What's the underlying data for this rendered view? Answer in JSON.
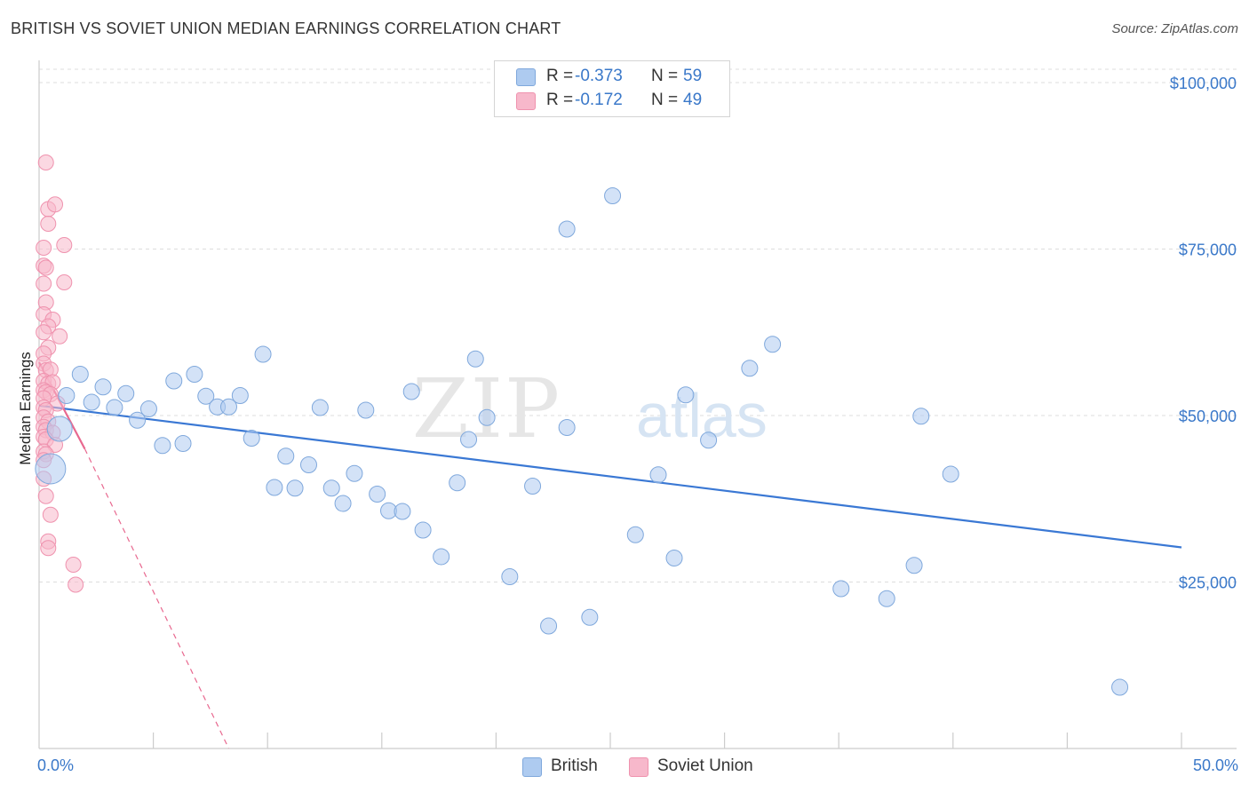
{
  "title": "BRITISH VS SOVIET UNION MEDIAN EARNINGS CORRELATION CHART",
  "source": "Source: ZipAtlas.com",
  "watermark": {
    "zip": "ZIP",
    "atlas": "atlas"
  },
  "legend_top": [
    {
      "r_label": "R =",
      "r_value": "-0.373",
      "n_label": "N =",
      "n_value": "59"
    },
    {
      "r_label": "R =",
      "r_value": "-0.172",
      "n_label": "N =",
      "n_value": "49"
    }
  ],
  "legend_bottom": [
    {
      "label": "British"
    },
    {
      "label": "Soviet Union"
    }
  ],
  "colors": {
    "british_fill": "#aecbf0",
    "british_stroke": "#7fa8dc",
    "british_line": "#3a78d4",
    "soviet_fill": "#f7b8cb",
    "soviet_stroke": "#ef92ae",
    "soviet_line": "#e8688f",
    "accent": "#3a78c9",
    "grid": "#dddddd"
  },
  "chart_data": {
    "type": "scatter",
    "title": "BRITISH VS SOVIET UNION MEDIAN EARNINGS CORRELATION CHART",
    "xlabel": "",
    "ylabel": "Median Earnings",
    "xlim": [
      0,
      50
    ],
    "ylim": [
      0,
      102000
    ],
    "x_tick_labels": [
      "0.0%",
      "50.0%"
    ],
    "y_ticks": [
      25000,
      50000,
      75000,
      100000
    ],
    "y_tick_labels": [
      "$25,000",
      "$50,000",
      "$75,000",
      "$100,000"
    ],
    "grid": true,
    "series": [
      {
        "name": "British",
        "r": -0.373,
        "n": 59,
        "trend": {
          "x": [
            0,
            50
          ],
          "y": [
            51500,
            30200
          ]
        },
        "points": [
          {
            "x": 0.5,
            "y": 42000,
            "big": 2
          },
          {
            "x": 0.9,
            "y": 48000,
            "big": 1
          },
          {
            "x": 1.2,
            "y": 53000
          },
          {
            "x": 1.8,
            "y": 56200
          },
          {
            "x": 2.3,
            "y": 52000
          },
          {
            "x": 2.8,
            "y": 54300
          },
          {
            "x": 3.3,
            "y": 51200
          },
          {
            "x": 3.8,
            "y": 53300
          },
          {
            "x": 4.3,
            "y": 49300
          },
          {
            "x": 4.8,
            "y": 51000
          },
          {
            "x": 5.4,
            "y": 45500
          },
          {
            "x": 5.9,
            "y": 55200
          },
          {
            "x": 6.3,
            "y": 45800
          },
          {
            "x": 6.8,
            "y": 56200
          },
          {
            "x": 7.3,
            "y": 52900
          },
          {
            "x": 7.8,
            "y": 51300
          },
          {
            "x": 8.3,
            "y": 51300
          },
          {
            "x": 8.8,
            "y": 53000
          },
          {
            "x": 9.3,
            "y": 46600
          },
          {
            "x": 9.8,
            "y": 59200
          },
          {
            "x": 10.3,
            "y": 39200
          },
          {
            "x": 10.8,
            "y": 43900
          },
          {
            "x": 11.2,
            "y": 39100
          },
          {
            "x": 11.8,
            "y": 42600
          },
          {
            "x": 12.3,
            "y": 51200
          },
          {
            "x": 12.8,
            "y": 39100
          },
          {
            "x": 13.3,
            "y": 36800
          },
          {
            "x": 13.8,
            "y": 41300
          },
          {
            "x": 14.3,
            "y": 50800
          },
          {
            "x": 14.8,
            "y": 38200
          },
          {
            "x": 15.3,
            "y": 35700
          },
          {
            "x": 15.9,
            "y": 35600
          },
          {
            "x": 16.3,
            "y": 53600
          },
          {
            "x": 16.8,
            "y": 32800
          },
          {
            "x": 17.6,
            "y": 28800
          },
          {
            "x": 18.3,
            "y": 39900
          },
          {
            "x": 18.8,
            "y": 46400
          },
          {
            "x": 19.1,
            "y": 58500
          },
          {
            "x": 19.6,
            "y": 49700
          },
          {
            "x": 20.6,
            "y": 25800
          },
          {
            "x": 21.6,
            "y": 39400
          },
          {
            "x": 22.3,
            "y": 18400
          },
          {
            "x": 23.1,
            "y": 48200
          },
          {
            "x": 23.1,
            "y": 78000
          },
          {
            "x": 24.1,
            "y": 19700
          },
          {
            "x": 25.1,
            "y": 83000
          },
          {
            "x": 26.1,
            "y": 32100
          },
          {
            "x": 27.1,
            "y": 41100
          },
          {
            "x": 27.8,
            "y": 28600
          },
          {
            "x": 28.3,
            "y": 53100
          },
          {
            "x": 29.3,
            "y": 46300
          },
          {
            "x": 31.1,
            "y": 57100
          },
          {
            "x": 32.1,
            "y": 60700
          },
          {
            "x": 35.1,
            "y": 24000
          },
          {
            "x": 37.1,
            "y": 22500
          },
          {
            "x": 38.3,
            "y": 27500
          },
          {
            "x": 38.6,
            "y": 49900
          },
          {
            "x": 39.9,
            "y": 41200
          },
          {
            "x": 47.3,
            "y": 9200
          }
        ]
      },
      {
        "name": "Soviet Union",
        "r": -0.172,
        "n": 49,
        "trend": {
          "x": [
            0,
            2.0
          ],
          "y": [
            58000,
            45000
          ]
        },
        "trend_extension": {
          "x": [
            2.0,
            8.3
          ],
          "y": [
            45000,
            0
          ]
        },
        "points": [
          {
            "x": 0.3,
            "y": 88000
          },
          {
            "x": 0.4,
            "y": 81000
          },
          {
            "x": 0.7,
            "y": 81700
          },
          {
            "x": 0.4,
            "y": 78800
          },
          {
            "x": 1.1,
            "y": 75600
          },
          {
            "x": 0.2,
            "y": 75200
          },
          {
            "x": 0.2,
            "y": 72500
          },
          {
            "x": 0.3,
            "y": 72200
          },
          {
            "x": 1.1,
            "y": 70000
          },
          {
            "x": 0.2,
            "y": 69800
          },
          {
            "x": 0.3,
            "y": 67000
          },
          {
            "x": 0.2,
            "y": 65200
          },
          {
            "x": 0.6,
            "y": 64400
          },
          {
            "x": 0.4,
            "y": 63400
          },
          {
            "x": 0.2,
            "y": 62500
          },
          {
            "x": 0.9,
            "y": 61900
          },
          {
            "x": 0.4,
            "y": 60200
          },
          {
            "x": 0.2,
            "y": 59300
          },
          {
            "x": 0.2,
            "y": 57800
          },
          {
            "x": 0.3,
            "y": 56800
          },
          {
            "x": 0.5,
            "y": 56900
          },
          {
            "x": 0.2,
            "y": 55200
          },
          {
            "x": 0.4,
            "y": 54800
          },
          {
            "x": 0.6,
            "y": 55000
          },
          {
            "x": 0.2,
            "y": 53800
          },
          {
            "x": 0.3,
            "y": 53500
          },
          {
            "x": 0.5,
            "y": 53200
          },
          {
            "x": 0.2,
            "y": 52600
          },
          {
            "x": 0.8,
            "y": 51800
          },
          {
            "x": 0.2,
            "y": 51200
          },
          {
            "x": 0.3,
            "y": 50800
          },
          {
            "x": 0.2,
            "y": 49700
          },
          {
            "x": 0.4,
            "y": 49100
          },
          {
            "x": 0.2,
            "y": 48300
          },
          {
            "x": 0.3,
            "y": 47800
          },
          {
            "x": 0.6,
            "y": 47400
          },
          {
            "x": 0.2,
            "y": 46800
          },
          {
            "x": 0.3,
            "y": 46400
          },
          {
            "x": 0.7,
            "y": 45600
          },
          {
            "x": 0.2,
            "y": 44600
          },
          {
            "x": 0.3,
            "y": 44200
          },
          {
            "x": 0.2,
            "y": 43300
          },
          {
            "x": 0.3,
            "y": 37900
          },
          {
            "x": 0.5,
            "y": 35100
          },
          {
            "x": 0.4,
            "y": 31100
          },
          {
            "x": 0.4,
            "y": 30100
          },
          {
            "x": 1.5,
            "y": 27600
          },
          {
            "x": 1.6,
            "y": 24600
          },
          {
            "x": 0.2,
            "y": 40500
          }
        ]
      }
    ]
  }
}
